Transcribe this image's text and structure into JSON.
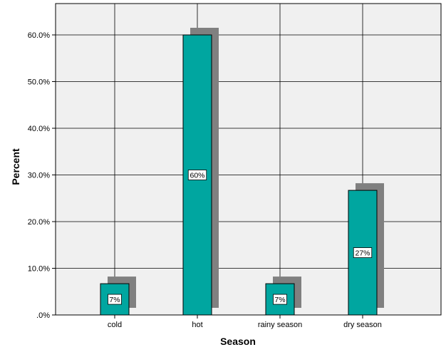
{
  "chart_data": {
    "type": "bar",
    "categories": [
      "cold",
      "hot",
      "rainy season",
      "dry season"
    ],
    "values": [
      6.7,
      60.0,
      6.7,
      26.7
    ],
    "data_labels": [
      "7%",
      "60%",
      "7%",
      "27%"
    ],
    "title": "",
    "xlabel": "Season",
    "ylabel": "Percent",
    "ylim": [
      0,
      67
    ],
    "yticks": [
      0,
      10,
      20,
      30,
      40,
      50,
      60
    ],
    "ytick_labels": [
      ".0%",
      "10.0%",
      "20.0%",
      "30.0%",
      "40.0%",
      "50.0%",
      "60.0%"
    ],
    "grid": true,
    "bar_color": "#00a6a0",
    "shadow_color": "#808080",
    "plot_background": "#f0f0f0"
  }
}
